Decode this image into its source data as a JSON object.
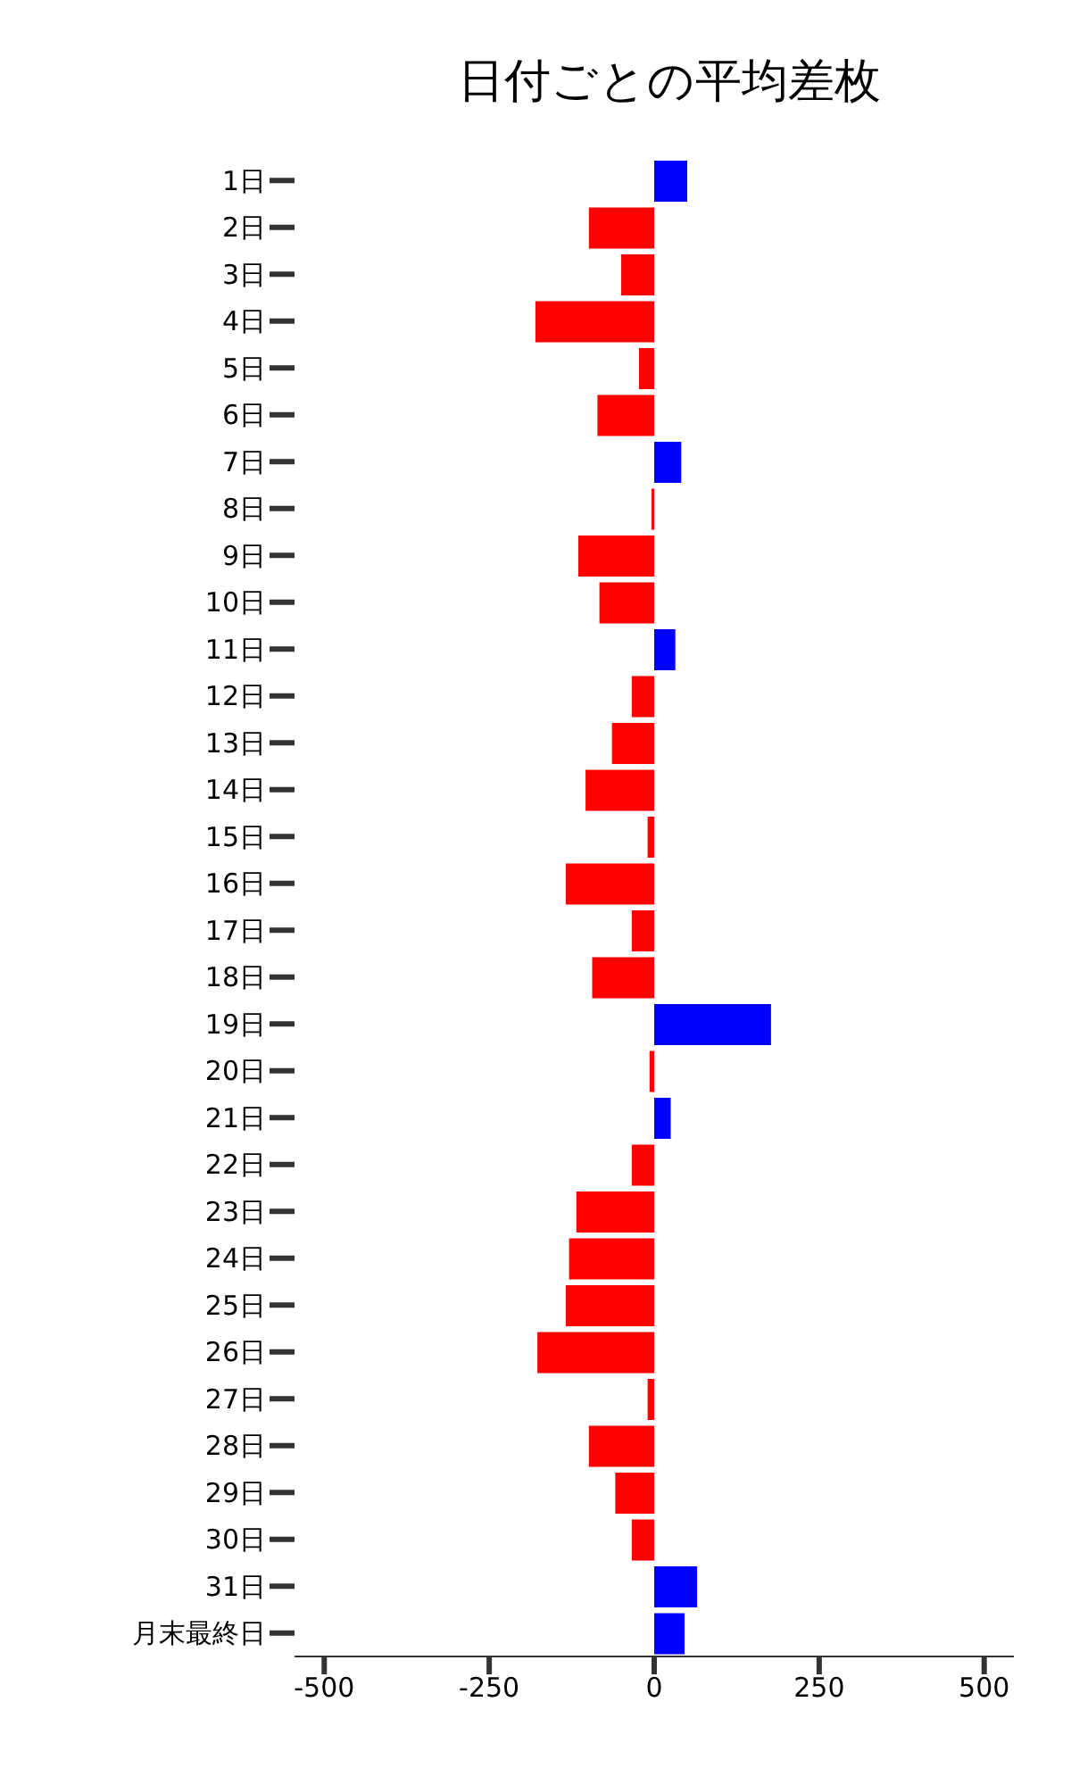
{
  "chart_data": {
    "type": "bar",
    "orientation": "horizontal",
    "title": "日付ごとの平均差枚",
    "categories": [
      "1日",
      "2日",
      "3日",
      "4日",
      "5日",
      "6日",
      "7日",
      "8日",
      "9日",
      "10日",
      "11日",
      "12日",
      "13日",
      "14日",
      "15日",
      "16日",
      "17日",
      "18日",
      "19日",
      "20日",
      "21日",
      "22日",
      "23日",
      "24日",
      "25日",
      "26日",
      "27日",
      "28日",
      "29日",
      "30日",
      "31日",
      "月末最終日"
    ],
    "values": [
      50,
      -99,
      -50,
      -180,
      -23,
      -86,
      41,
      -4,
      -115,
      -83,
      32,
      -34,
      -64,
      -104,
      -10,
      -134,
      -34,
      -94,
      177,
      -7,
      25,
      -34,
      -118,
      -129,
      -134,
      -177,
      -10,
      -99,
      -59,
      -34,
      65,
      46
    ],
    "colors": [
      "#0000ff",
      "#ff0000",
      "#ff0000",
      "#ff0000",
      "#ff0000",
      "#ff0000",
      "#0000ff",
      "#ff0000",
      "#ff0000",
      "#ff0000",
      "#0000ff",
      "#ff0000",
      "#ff0000",
      "#ff0000",
      "#ff0000",
      "#ff0000",
      "#ff0000",
      "#ff0000",
      "#0000ff",
      "#ff0000",
      "#0000ff",
      "#ff0000",
      "#ff0000",
      "#ff0000",
      "#ff0000",
      "#ff0000",
      "#ff0000",
      "#ff0000",
      "#ff0000",
      "#ff0000",
      "#0000ff",
      "#0000ff"
    ],
    "xlim": [
      -545,
      545
    ],
    "xticks": [
      -500,
      -250,
      0,
      250,
      500
    ],
    "grid": false,
    "legend": false
  }
}
